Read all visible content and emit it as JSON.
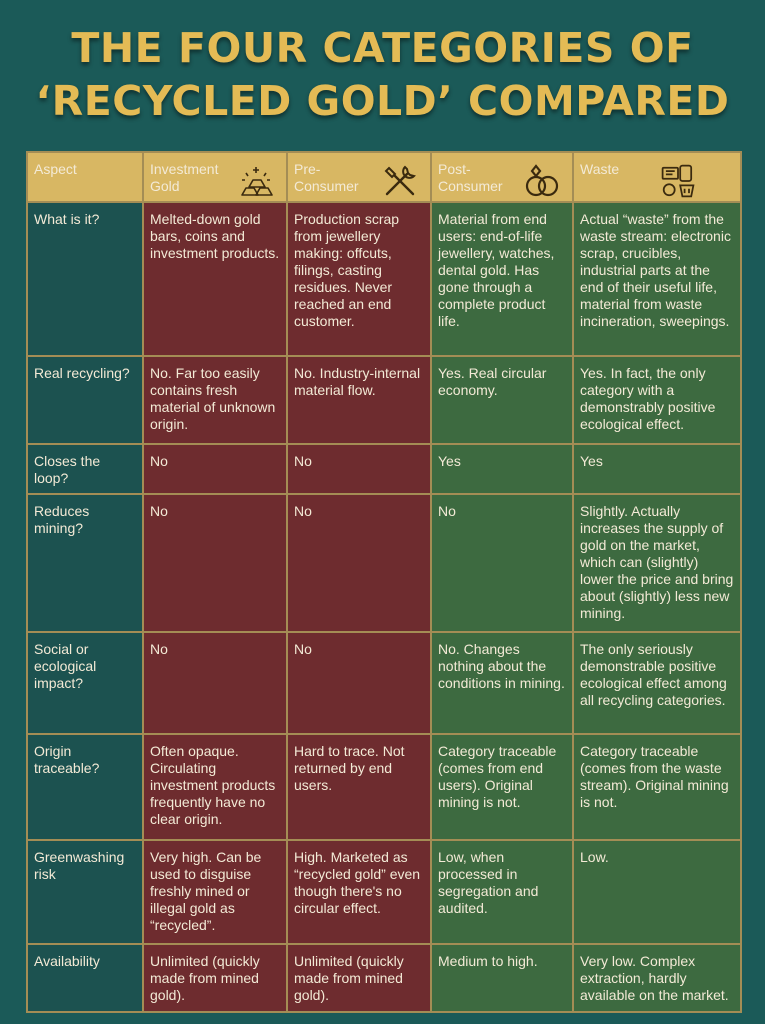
{
  "title": {
    "line1": "THE FOUR CATEGORIES OF",
    "line2": "‘RECYCLED GOLD’ COMPARED"
  },
  "colors": {
    "background": "#1b5a58",
    "title_gold": "#e4bb55",
    "header_gold": "#d8b763",
    "cell_red": "#6e2c2f",
    "cell_green": "#3d6a40"
  },
  "header": {
    "aspect": "Aspect",
    "columns": [
      {
        "line1": "Investment",
        "line2": "Gold",
        "icon": "gold-bars-icon"
      },
      {
        "line1": "Pre-",
        "line2": "Consumer",
        "icon": "tools-icon"
      },
      {
        "line1": "Post-",
        "line2": "Consumer",
        "icon": "rings-icon"
      },
      {
        "line1": "Waste",
        "line2": "",
        "icon": "electronic-waste-icon"
      }
    ]
  },
  "rows": [
    {
      "aspect": "What is it?",
      "cells": [
        "Melted-down gold bars, coins and investment products.",
        "Production scrap from jewellery making: offcuts, filings, casting residues. Never reached an end customer.",
        "Material from end users: end-of-life jewellery, watches, dental gold. Has gone through a complete product life.",
        "Actual “waste” from the waste stream: electronic scrap, crucibles, industrial parts at the end of their useful life, material from waste incineration, sweepings."
      ]
    },
    {
      "aspect": "Real recycling?",
      "cells": [
        "No. Far too easily contains fresh material of unknown origin.",
        "No. Industry-internal material flow.",
        "Yes. Real circular economy.",
        "Yes. In fact, the only category with a demonstrably positive ecological effect."
      ]
    },
    {
      "aspect": "Closes the loop?",
      "cells": [
        "No",
        "No",
        "Yes",
        "Yes"
      ]
    },
    {
      "aspect": "Reduces mining?",
      "cells": [
        "No",
        "No",
        "No",
        "Slightly. Actually increases the supply of gold on the market, which can (slightly) lower the price and bring about (slightly) less new mining."
      ]
    },
    {
      "aspect": "Social or ecological impact?",
      "cells": [
        "No",
        "No",
        "No. Changes nothing about the conditions in mining.",
        "The only seriously demonstrable positive ecological effect among all recycling categories."
      ]
    },
    {
      "aspect": "Origin traceable?",
      "cells": [
        "Often opaque. Circulating investment products frequently have no clear origin.",
        "Hard to trace. Not returned by end users.",
        "Category traceable (comes from end users). Original mining is not.",
        "Category traceable (comes from the waste stream). Original mining is not."
      ]
    },
    {
      "aspect": "Greenwashing risk",
      "cells": [
        "Very high. Can be used to disguise freshly mined or illegal gold as “recycled”.",
        "High. Marketed as “recycled gold” even though there's no circular effect.",
        "Low, when processed in segregation and audited.",
        "Low."
      ]
    },
    {
      "aspect": "Availability",
      "cells": [
        "Unlimited (quickly made from mined gold).",
        "Unlimited (quickly made from mined gold).",
        "Medium to high.",
        "Very low. Complex extraction, hardly available on the market."
      ]
    }
  ]
}
